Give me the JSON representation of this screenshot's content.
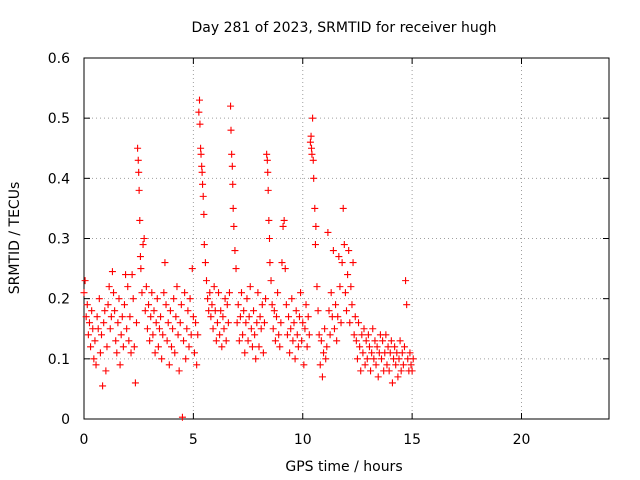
{
  "chart_data": {
    "type": "scatter",
    "title": "Day 281 of 2023, SRMTID for receiver hugh",
    "xlabel": "GPS time / hours",
    "ylabel": "SRMTID / TECUs",
    "xlim": [
      0,
      24
    ],
    "ylim": [
      0,
      0.6
    ],
    "xticks": [
      0,
      5,
      10,
      15,
      20
    ],
    "xtick_labels": [
      "0",
      "5",
      "10",
      "15",
      "20"
    ],
    "yticks": [
      0,
      0.1,
      0.2,
      0.3,
      0.4,
      0.5,
      0.6
    ],
    "ytick_labels": [
      "0",
      "0.1",
      "0.2",
      "0.3",
      "0.4",
      "0.5",
      "0.6"
    ],
    "grid": true,
    "marker": "+",
    "color": "#ff0000",
    "series": [
      {
        "name": "SRMTID",
        "points": [
          [
            0.0,
            0.21
          ],
          [
            0.05,
            0.23
          ],
          [
            0.1,
            0.17
          ],
          [
            0.15,
            0.19
          ],
          [
            0.2,
            0.14
          ],
          [
            0.25,
            0.16
          ],
          [
            0.3,
            0.12
          ],
          [
            0.35,
            0.18
          ],
          [
            0.4,
            0.15
          ],
          [
            0.45,
            0.1
          ],
          [
            0.5,
            0.13
          ],
          [
            0.55,
            0.09
          ],
          [
            0.6,
            0.17
          ],
          [
            0.65,
            0.15
          ],
          [
            0.7,
            0.2
          ],
          [
            0.75,
            0.11
          ],
          [
            0.8,
            0.14
          ],
          [
            0.85,
            0.055
          ],
          [
            0.9,
            0.16
          ],
          [
            0.95,
            0.18
          ],
          [
            1.0,
            0.08
          ],
          [
            1.05,
            0.12
          ],
          [
            1.1,
            0.19
          ],
          [
            1.15,
            0.22
          ],
          [
            1.2,
            0.15
          ],
          [
            1.25,
            0.17
          ],
          [
            1.3,
            0.245
          ],
          [
            1.35,
            0.21
          ],
          [
            1.4,
            0.18
          ],
          [
            1.45,
            0.13
          ],
          [
            1.5,
            0.11
          ],
          [
            1.55,
            0.16
          ],
          [
            1.6,
            0.2
          ],
          [
            1.65,
            0.09
          ],
          [
            1.7,
            0.14
          ],
          [
            1.75,
            0.17
          ],
          [
            1.8,
            0.12
          ],
          [
            1.85,
            0.19
          ],
          [
            1.9,
            0.24
          ],
          [
            1.95,
            0.15
          ],
          [
            2.0,
            0.22
          ],
          [
            2.05,
            0.13
          ],
          [
            2.1,
            0.17
          ],
          [
            2.15,
            0.11
          ],
          [
            2.2,
            0.24
          ],
          [
            2.25,
            0.2
          ],
          [
            2.3,
            0.12
          ],
          [
            2.35,
            0.06
          ],
          [
            2.4,
            0.16
          ],
          [
            2.45,
            0.45
          ],
          [
            2.48,
            0.43
          ],
          [
            2.5,
            0.41
          ],
          [
            2.52,
            0.38
          ],
          [
            2.55,
            0.33
          ],
          [
            2.58,
            0.27
          ],
          [
            2.6,
            0.25
          ],
          [
            2.65,
            0.21
          ],
          [
            2.7,
            0.29
          ],
          [
            2.75,
            0.3
          ],
          [
            2.8,
            0.18
          ],
          [
            2.85,
            0.22
          ],
          [
            2.9,
            0.15
          ],
          [
            2.95,
            0.19
          ],
          [
            3.0,
            0.13
          ],
          [
            3.05,
            0.17
          ],
          [
            3.1,
            0.21
          ],
          [
            3.15,
            0.14
          ],
          [
            3.2,
            0.18
          ],
          [
            3.25,
            0.11
          ],
          [
            3.3,
            0.16
          ],
          [
            3.35,
            0.2
          ],
          [
            3.4,
            0.12
          ],
          [
            3.45,
            0.15
          ],
          [
            3.5,
            0.17
          ],
          [
            3.55,
            0.1
          ],
          [
            3.6,
            0.14
          ],
          [
            3.65,
            0.21
          ],
          [
            3.7,
            0.26
          ],
          [
            3.75,
            0.19
          ],
          [
            3.8,
            0.13
          ],
          [
            3.85,
            0.16
          ],
          [
            3.9,
            0.09
          ],
          [
            3.95,
            0.18
          ],
          [
            4.0,
            0.12
          ],
          [
            4.05,
            0.15
          ],
          [
            4.1,
            0.2
          ],
          [
            4.15,
            0.11
          ],
          [
            4.2,
            0.17
          ],
          [
            4.25,
            0.22
          ],
          [
            4.3,
            0.14
          ],
          [
            4.35,
            0.08
          ],
          [
            4.4,
            0.16
          ],
          [
            4.45,
            0.19
          ],
          [
            4.5,
            0.003
          ],
          [
            4.55,
            0.13
          ],
          [
            4.6,
            0.21
          ],
          [
            4.65,
            0.1
          ],
          [
            4.7,
            0.15
          ],
          [
            4.75,
            0.18
          ],
          [
            4.8,
            0.12
          ],
          [
            4.85,
            0.2
          ],
          [
            4.9,
            0.14
          ],
          [
            4.95,
            0.25
          ],
          [
            5.0,
            0.17
          ],
          [
            5.05,
            0.11
          ],
          [
            5.1,
            0.16
          ],
          [
            5.15,
            0.09
          ],
          [
            5.2,
            0.14
          ],
          [
            5.25,
            0.51
          ],
          [
            5.28,
            0.53
          ],
          [
            5.3,
            0.49
          ],
          [
            5.33,
            0.45
          ],
          [
            5.35,
            0.44
          ],
          [
            5.38,
            0.42
          ],
          [
            5.4,
            0.41
          ],
          [
            5.42,
            0.39
          ],
          [
            5.45,
            0.37
          ],
          [
            5.48,
            0.34
          ],
          [
            5.5,
            0.29
          ],
          [
            5.55,
            0.26
          ],
          [
            5.6,
            0.23
          ],
          [
            5.65,
            0.2
          ],
          [
            5.7,
            0.18
          ],
          [
            5.75,
            0.21
          ],
          [
            5.8,
            0.17
          ],
          [
            5.85,
            0.19
          ],
          [
            5.9,
            0.15
          ],
          [
            5.95,
            0.22
          ],
          [
            6.0,
            0.18
          ],
          [
            6.05,
            0.13
          ],
          [
            6.1,
            0.16
          ],
          [
            6.15,
            0.21
          ],
          [
            6.2,
            0.14
          ],
          [
            6.25,
            0.18
          ],
          [
            6.3,
            0.12
          ],
          [
            6.35,
            0.17
          ],
          [
            6.4,
            0.15
          ],
          [
            6.45,
            0.2
          ],
          [
            6.5,
            0.13
          ],
          [
            6.55,
            0.19
          ],
          [
            6.6,
            0.16
          ],
          [
            6.65,
            0.21
          ],
          [
            6.7,
            0.52
          ],
          [
            6.72,
            0.48
          ],
          [
            6.75,
            0.44
          ],
          [
            6.78,
            0.42
          ],
          [
            6.8,
            0.39
          ],
          [
            6.82,
            0.35
          ],
          [
            6.85,
            0.32
          ],
          [
            6.9,
            0.28
          ],
          [
            6.95,
            0.25
          ],
          [
            7.0,
            0.16
          ],
          [
            7.05,
            0.19
          ],
          [
            7.1,
            0.13
          ],
          [
            7.15,
            0.17
          ],
          [
            7.2,
            0.21
          ],
          [
            7.25,
            0.14
          ],
          [
            7.3,
            0.18
          ],
          [
            7.35,
            0.11
          ],
          [
            7.4,
            0.16
          ],
          [
            7.45,
            0.2
          ],
          [
            7.5,
            0.13
          ],
          [
            7.55,
            0.17
          ],
          [
            7.6,
            0.22
          ],
          [
            7.65,
            0.15
          ],
          [
            7.7,
            0.12
          ],
          [
            7.75,
            0.18
          ],
          [
            7.8,
            0.14
          ],
          [
            7.85,
            0.1
          ],
          [
            7.9,
            0.16
          ],
          [
            7.95,
            0.21
          ],
          [
            8.0,
            0.12
          ],
          [
            8.05,
            0.17
          ],
          [
            8.1,
            0.15
          ],
          [
            8.15,
            0.19
          ],
          [
            8.2,
            0.11
          ],
          [
            8.25,
            0.16
          ],
          [
            8.3,
            0.2
          ],
          [
            8.35,
            0.44
          ],
          [
            8.38,
            0.43
          ],
          [
            8.4,
            0.41
          ],
          [
            8.42,
            0.38
          ],
          [
            8.45,
            0.33
          ],
          [
            8.48,
            0.3
          ],
          [
            8.5,
            0.26
          ],
          [
            8.55,
            0.23
          ],
          [
            8.6,
            0.19
          ],
          [
            8.65,
            0.15
          ],
          [
            8.7,
            0.18
          ],
          [
            8.75,
            0.13
          ],
          [
            8.8,
            0.17
          ],
          [
            8.85,
            0.21
          ],
          [
            8.9,
            0.14
          ],
          [
            8.95,
            0.12
          ],
          [
            9.0,
            0.16
          ],
          [
            9.05,
            0.26
          ],
          [
            9.1,
            0.32
          ],
          [
            9.15,
            0.33
          ],
          [
            9.2,
            0.25
          ],
          [
            9.25,
            0.19
          ],
          [
            9.3,
            0.14
          ],
          [
            9.35,
            0.17
          ],
          [
            9.4,
            0.11
          ],
          [
            9.45,
            0.15
          ],
          [
            9.5,
            0.2
          ],
          [
            9.55,
            0.13
          ],
          [
            9.6,
            0.16
          ],
          [
            9.65,
            0.1
          ],
          [
            9.7,
            0.18
          ],
          [
            9.75,
            0.14
          ],
          [
            9.8,
            0.12
          ],
          [
            9.85,
            0.17
          ],
          [
            9.9,
            0.21
          ],
          [
            9.95,
            0.13
          ],
          [
            10.0,
            0.16
          ],
          [
            10.05,
            0.09
          ],
          [
            10.1,
            0.15
          ],
          [
            10.15,
            0.19
          ],
          [
            10.2,
            0.12
          ],
          [
            10.25,
            0.17
          ],
          [
            10.3,
            0.14
          ],
          [
            10.35,
            0.46
          ],
          [
            10.38,
            0.47
          ],
          [
            10.4,
            0.45
          ],
          [
            10.42,
            0.44
          ],
          [
            10.45,
            0.5
          ],
          [
            10.48,
            0.43
          ],
          [
            10.5,
            0.4
          ],
          [
            10.55,
            0.35
          ],
          [
            10.58,
            0.29
          ],
          [
            10.6,
            0.32
          ],
          [
            10.65,
            0.22
          ],
          [
            10.7,
            0.18
          ],
          [
            10.75,
            0.14
          ],
          [
            10.8,
            0.09
          ],
          [
            10.85,
            0.13
          ],
          [
            10.9,
            0.07
          ],
          [
            10.95,
            0.11
          ],
          [
            11.0,
            0.15
          ],
          [
            11.05,
            0.1
          ],
          [
            11.1,
            0.12
          ],
          [
            11.15,
            0.31
          ],
          [
            11.2,
            0.18
          ],
          [
            11.25,
            0.14
          ],
          [
            11.3,
            0.21
          ],
          [
            11.35,
            0.17
          ],
          [
            11.4,
            0.28
          ],
          [
            11.45,
            0.15
          ],
          [
            11.5,
            0.19
          ],
          [
            11.55,
            0.13
          ],
          [
            11.6,
            0.17
          ],
          [
            11.65,
            0.27
          ],
          [
            11.7,
            0.22
          ],
          [
            11.75,
            0.16
          ],
          [
            11.8,
            0.26
          ],
          [
            11.85,
            0.35
          ],
          [
            11.9,
            0.29
          ],
          [
            11.95,
            0.21
          ],
          [
            12.0,
            0.18
          ],
          [
            12.05,
            0.24
          ],
          [
            12.1,
            0.28
          ],
          [
            12.15,
            0.16
          ],
          [
            12.2,
            0.22
          ],
          [
            12.25,
            0.19
          ],
          [
            12.3,
            0.26
          ],
          [
            12.35,
            0.14
          ],
          [
            12.4,
            0.17
          ],
          [
            12.45,
            0.13
          ],
          [
            12.5,
            0.1
          ],
          [
            12.55,
            0.16
          ],
          [
            12.6,
            0.12
          ],
          [
            12.65,
            0.08
          ],
          [
            12.7,
            0.14
          ],
          [
            12.75,
            0.11
          ],
          [
            12.8,
            0.15
          ],
          [
            12.85,
            0.09
          ],
          [
            12.9,
            0.13
          ],
          [
            12.95,
            0.1
          ],
          [
            13.0,
            0.14
          ],
          [
            13.05,
            0.12
          ],
          [
            13.1,
            0.08
          ],
          [
            13.15,
            0.11
          ],
          [
            13.2,
            0.15
          ],
          [
            13.25,
            0.1
          ],
          [
            13.3,
            0.13
          ],
          [
            13.35,
            0.09
          ],
          [
            13.4,
            0.12
          ],
          [
            13.45,
            0.07
          ],
          [
            13.5,
            0.11
          ],
          [
            13.55,
            0.14
          ],
          [
            13.6,
            0.1
          ],
          [
            13.65,
            0.13
          ],
          [
            13.7,
            0.08
          ],
          [
            13.75,
            0.11
          ],
          [
            13.8,
            0.14
          ],
          [
            13.85,
            0.09
          ],
          [
            13.9,
            0.12
          ],
          [
            13.95,
            0.08
          ],
          [
            14.0,
            0.11
          ],
          [
            14.05,
            0.13
          ],
          [
            14.1,
            0.06
          ],
          [
            14.15,
            0.1
          ],
          [
            14.2,
            0.12
          ],
          [
            14.25,
            0.09
          ],
          [
            14.3,
            0.11
          ],
          [
            14.35,
            0.07
          ],
          [
            14.4,
            0.1
          ],
          [
            14.45,
            0.13
          ],
          [
            14.5,
            0.08
          ],
          [
            14.55,
            0.11
          ],
          [
            14.6,
            0.09
          ],
          [
            14.65,
            0.12
          ],
          [
            14.7,
            0.23
          ],
          [
            14.75,
            0.19
          ],
          [
            14.8,
            0.1
          ],
          [
            14.85,
            0.08
          ],
          [
            14.9,
            0.11
          ],
          [
            14.95,
            0.09
          ],
          [
            15.0,
            0.08
          ],
          [
            15.05,
            0.1
          ]
        ]
      }
    ]
  }
}
